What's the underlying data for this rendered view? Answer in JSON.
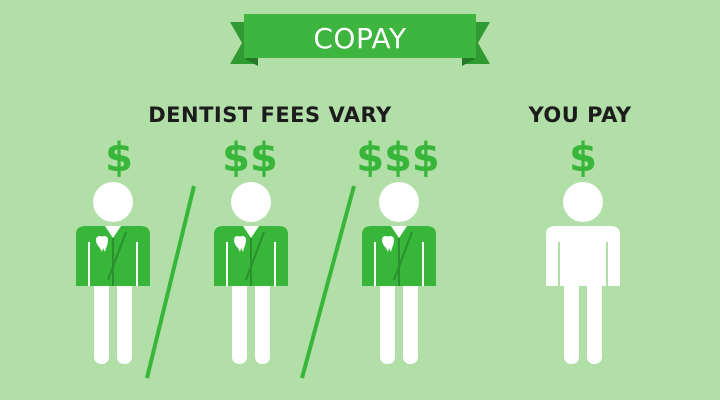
{
  "banner": {
    "label": "COPAY"
  },
  "headings": {
    "dentist_fees": "DENTIST FEES VARY",
    "you_pay": "YOU PAY"
  },
  "dentists": [
    {
      "fee": "$"
    },
    {
      "fee": "$$"
    },
    {
      "fee": "$$$"
    }
  ],
  "patient": {
    "fee": "$"
  },
  "colors": {
    "background": "#b2dea8",
    "accent_green": "#38b63a",
    "banner_green": "#3db53f",
    "figure_white": "#ffffff",
    "text_dark": "#1c1c1c"
  }
}
